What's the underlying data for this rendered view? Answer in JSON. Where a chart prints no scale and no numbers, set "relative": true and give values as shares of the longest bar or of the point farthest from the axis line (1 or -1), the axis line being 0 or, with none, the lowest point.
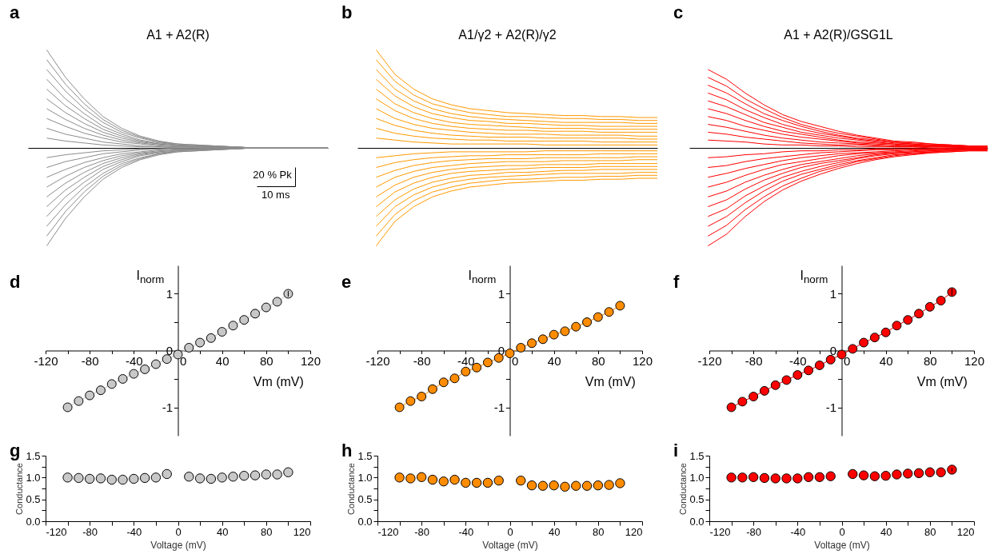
{
  "chart_data": [
    {
      "type": "line",
      "title": "A1 + A2(R)",
      "annotations": [
        "a",
        "20 % Pk",
        "10 ms"
      ],
      "relative": true,
      "color": "#8c8c8c",
      "categories": [
        null,
        null,
        null,
        null,
        null,
        null,
        null,
        null,
        null,
        null,
        null,
        null,
        null,
        null,
        null,
        null,
        null
      ],
      "series": [
        {
          "values": [
            null,
            -1,
            -0.72,
            -0.5,
            -0.32,
            -0.2,
            -0.12,
            -0.07,
            -0.04,
            -0.03,
            -0.02,
            -0.01,
            0,
            0,
            0,
            0,
            0
          ]
        },
        {
          "values": [
            null,
            -0.9,
            -0.65,
            -0.45,
            -0.29,
            -0.18,
            -0.11,
            -0.06,
            -0.04,
            -0.03,
            -0.02,
            -0.01,
            0,
            0,
            0,
            0,
            0
          ]
        },
        {
          "values": [
            null,
            -0.8,
            -0.58,
            -0.4,
            -0.26,
            -0.16,
            -0.1,
            -0.06,
            -0.03,
            -0.02,
            -0.02,
            -0.01,
            0,
            0,
            0,
            0,
            0
          ]
        },
        {
          "values": [
            null,
            -0.7,
            -0.5,
            -0.35,
            -0.22,
            -0.14,
            -0.08,
            -0.05,
            -0.03,
            -0.02,
            -0.01,
            -0.01,
            0,
            0,
            0,
            0,
            0
          ]
        },
        {
          "values": [
            null,
            -0.6,
            -0.43,
            -0.3,
            -0.19,
            -0.12,
            -0.07,
            -0.04,
            -0.02,
            -0.02,
            -0.01,
            -0.01,
            0,
            0,
            0,
            0,
            0
          ]
        },
        {
          "values": [
            null,
            -0.5,
            -0.36,
            -0.25,
            -0.16,
            -0.1,
            -0.06,
            -0.04,
            -0.02,
            -0.02,
            -0.01,
            -0.01,
            0,
            0,
            0,
            0,
            0
          ]
        },
        {
          "values": [
            null,
            -0.4,
            -0.29,
            -0.2,
            -0.13,
            -0.08,
            -0.05,
            -0.03,
            -0.02,
            -0.01,
            -0.01,
            0,
            0,
            0,
            0,
            0,
            0
          ]
        },
        {
          "values": [
            null,
            -0.3,
            -0.22,
            -0.15,
            -0.1,
            -0.06,
            -0.04,
            -0.02,
            -0.01,
            -0.01,
            -0.01,
            0,
            0,
            0,
            0,
            0,
            0
          ]
        },
        {
          "values": [
            null,
            -0.2,
            -0.14,
            -0.1,
            -0.06,
            -0.04,
            -0.02,
            -0.01,
            -0.01,
            -0.01,
            0,
            0,
            0,
            0,
            0,
            0,
            0
          ]
        },
        {
          "values": [
            null,
            -0.1,
            -0.07,
            -0.05,
            -0.03,
            -0.02,
            -0.01,
            -0.01,
            0,
            0,
            0,
            0,
            0,
            0,
            0,
            0,
            0
          ]
        },
        {
          "values": [
            null,
            0.1,
            0.07,
            0.05,
            0.03,
            0.02,
            0.01,
            0.01,
            0,
            0,
            0,
            0,
            0,
            0,
            0,
            0,
            0
          ]
        },
        {
          "values": [
            null,
            0.2,
            0.14,
            0.1,
            0.06,
            0.04,
            0.02,
            0.01,
            0.01,
            0.01,
            0,
            0,
            0,
            0,
            0,
            0,
            0
          ]
        },
        {
          "values": [
            null,
            0.3,
            0.22,
            0.15,
            0.1,
            0.06,
            0.04,
            0.02,
            0.01,
            0.01,
            0.01,
            0,
            0,
            0,
            0,
            0,
            0
          ]
        },
        {
          "values": [
            null,
            0.4,
            0.29,
            0.2,
            0.13,
            0.08,
            0.05,
            0.03,
            0.02,
            0.01,
            0.01,
            0,
            0,
            0,
            0,
            0,
            0
          ]
        },
        {
          "values": [
            null,
            0.5,
            0.36,
            0.25,
            0.16,
            0.1,
            0.06,
            0.04,
            0.02,
            0.02,
            0.01,
            0.01,
            0,
            0,
            0,
            0,
            0
          ]
        },
        {
          "values": [
            null,
            0.6,
            0.43,
            0.3,
            0.19,
            0.12,
            0.07,
            0.04,
            0.02,
            0.02,
            0.01,
            0.01,
            0,
            0,
            0,
            0,
            0
          ]
        },
        {
          "values": [
            null,
            0.7,
            0.5,
            0.35,
            0.22,
            0.14,
            0.08,
            0.05,
            0.03,
            0.02,
            0.01,
            0.01,
            0,
            0,
            0,
            0,
            0
          ]
        },
        {
          "values": [
            null,
            0.8,
            0.58,
            0.4,
            0.26,
            0.16,
            0.1,
            0.06,
            0.03,
            0.02,
            0.02,
            0.01,
            0,
            0,
            0,
            0,
            0
          ]
        },
        {
          "values": [
            null,
            0.9,
            0.65,
            0.45,
            0.29,
            0.18,
            0.11,
            0.06,
            0.04,
            0.03,
            0.02,
            0.01,
            0,
            0,
            0,
            0,
            0
          ]
        },
        {
          "values": [
            null,
            1,
            0.72,
            0.5,
            0.32,
            0.2,
            0.12,
            0.07,
            0.04,
            0.03,
            0.02,
            0.01,
            0,
            0,
            0,
            0,
            0
          ]
        }
      ]
    },
    {
      "type": "line",
      "title": "A1/γ2 + A2(R)/γ2",
      "annotations": [
        "b"
      ],
      "relative": true,
      "color": "#ff9900",
      "categories": [
        null,
        null,
        null,
        null,
        null,
        null,
        null,
        null,
        null,
        null,
        null,
        null,
        null,
        null,
        null,
        null,
        null
      ],
      "series": [
        {
          "values": [
            null,
            -1,
            -0.75,
            -0.6,
            -0.5,
            -0.44,
            -0.4,
            -0.38,
            -0.36,
            -0.35,
            -0.34,
            -0.33,
            -0.33,
            -0.32,
            -0.32,
            -0.31,
            -0.31
          ]
        },
        {
          "values": [
            null,
            -0.9,
            -0.68,
            -0.54,
            -0.45,
            -0.4,
            -0.36,
            -0.34,
            -0.32,
            -0.32,
            -0.31,
            -0.3,
            -0.3,
            -0.29,
            -0.29,
            -0.28,
            -0.28
          ]
        },
        {
          "values": [
            null,
            -0.8,
            -0.6,
            -0.48,
            -0.4,
            -0.35,
            -0.32,
            -0.3,
            -0.29,
            -0.28,
            -0.27,
            -0.26,
            -0.26,
            -0.26,
            -0.26,
            -0.25,
            -0.25
          ]
        },
        {
          "values": [
            null,
            -0.7,
            -0.53,
            -0.42,
            -0.35,
            -0.31,
            -0.28,
            -0.27,
            -0.25,
            -0.25,
            -0.24,
            -0.23,
            -0.23,
            -0.22,
            -0.22,
            -0.22,
            -0.22
          ]
        },
        {
          "values": [
            null,
            -0.6,
            -0.45,
            -0.36,
            -0.3,
            -0.26,
            -0.24,
            -0.23,
            -0.22,
            -0.21,
            -0.2,
            -0.2,
            -0.2,
            -0.19,
            -0.19,
            -0.19,
            -0.19
          ]
        },
        {
          "values": [
            null,
            -0.5,
            -0.38,
            -0.3,
            -0.25,
            -0.22,
            -0.2,
            -0.19,
            -0.18,
            -0.18,
            -0.17,
            -0.17,
            -0.17,
            -0.16,
            -0.16,
            -0.16,
            -0.16
          ]
        },
        {
          "values": [
            null,
            -0.4,
            -0.3,
            -0.24,
            -0.2,
            -0.18,
            -0.16,
            -0.15,
            -0.14,
            -0.14,
            -0.14,
            -0.13,
            -0.13,
            -0.13,
            -0.13,
            -0.12,
            -0.12
          ]
        },
        {
          "values": [
            null,
            -0.3,
            -0.23,
            -0.18,
            -0.15,
            -0.13,
            -0.12,
            -0.11,
            -0.11,
            -0.11,
            -0.1,
            -0.1,
            -0.1,
            -0.1,
            -0.1,
            -0.09,
            -0.09
          ]
        },
        {
          "values": [
            null,
            -0.2,
            -0.15,
            -0.12,
            -0.1,
            -0.09,
            -0.08,
            -0.08,
            -0.07,
            -0.07,
            -0.07,
            -0.07,
            -0.07,
            -0.06,
            -0.06,
            -0.06,
            -0.06
          ]
        },
        {
          "values": [
            null,
            -0.1,
            -0.08,
            -0.06,
            -0.05,
            -0.04,
            -0.04,
            -0.04,
            -0.04,
            -0.04,
            -0.03,
            -0.03,
            -0.03,
            -0.03,
            -0.03,
            -0.03,
            -0.03
          ]
        },
        {
          "values": [
            null,
            0.1,
            0.08,
            0.06,
            0.05,
            0.04,
            0.04,
            0.04,
            0.04,
            0.04,
            0.03,
            0.03,
            0.03,
            0.03,
            0.03,
            0.03,
            0.03
          ]
        },
        {
          "values": [
            null,
            0.2,
            0.15,
            0.12,
            0.1,
            0.09,
            0.08,
            0.08,
            0.07,
            0.07,
            0.07,
            0.07,
            0.07,
            0.06,
            0.06,
            0.06,
            0.06
          ]
        },
        {
          "values": [
            null,
            0.3,
            0.23,
            0.18,
            0.15,
            0.13,
            0.12,
            0.11,
            0.11,
            0.11,
            0.1,
            0.1,
            0.1,
            0.1,
            0.1,
            0.09,
            0.09
          ]
        },
        {
          "values": [
            null,
            0.4,
            0.3,
            0.24,
            0.2,
            0.18,
            0.16,
            0.15,
            0.14,
            0.14,
            0.14,
            0.13,
            0.13,
            0.13,
            0.13,
            0.12,
            0.12
          ]
        },
        {
          "values": [
            null,
            0.5,
            0.38,
            0.3,
            0.25,
            0.22,
            0.2,
            0.19,
            0.18,
            0.18,
            0.17,
            0.17,
            0.17,
            0.16,
            0.16,
            0.16,
            0.16
          ]
        },
        {
          "values": [
            null,
            0.6,
            0.45,
            0.36,
            0.3,
            0.26,
            0.24,
            0.23,
            0.22,
            0.21,
            0.2,
            0.2,
            0.2,
            0.19,
            0.19,
            0.19,
            0.19
          ]
        },
        {
          "values": [
            null,
            0.7,
            0.53,
            0.42,
            0.35,
            0.31,
            0.28,
            0.27,
            0.25,
            0.25,
            0.24,
            0.23,
            0.23,
            0.22,
            0.22,
            0.22,
            0.22
          ]
        },
        {
          "values": [
            null,
            0.8,
            0.6,
            0.48,
            0.4,
            0.35,
            0.32,
            0.3,
            0.29,
            0.28,
            0.27,
            0.26,
            0.26,
            0.26,
            0.26,
            0.25,
            0.25
          ]
        },
        {
          "values": [
            null,
            0.9,
            0.68,
            0.54,
            0.45,
            0.4,
            0.36,
            0.34,
            0.32,
            0.32,
            0.31,
            0.3,
            0.3,
            0.29,
            0.29,
            0.28,
            0.28
          ]
        },
        {
          "values": [
            null,
            1,
            0.75,
            0.6,
            0.5,
            0.44,
            0.4,
            0.38,
            0.36,
            0.35,
            0.34,
            0.33,
            0.33,
            0.32,
            0.32,
            0.31,
            0.31
          ]
        }
      ]
    },
    {
      "type": "line",
      "title": "A1 + A2(R)/GSG1L",
      "annotations": [
        "c"
      ],
      "relative": true,
      "color": "#ff0000",
      "categories": [
        null,
        null,
        null,
        null,
        null,
        null,
        null,
        null,
        null,
        null,
        null,
        null,
        null,
        null,
        null,
        null,
        null
      ],
      "series": [
        {
          "values": [
            null,
            -1,
            -0.88,
            -0.7,
            -0.55,
            -0.43,
            -0.34,
            -0.27,
            -0.21,
            -0.16,
            -0.12,
            -0.09,
            -0.07,
            -0.05,
            -0.04,
            -0.03,
            -0.03
          ]
        },
        {
          "values": [
            null,
            -0.9,
            -0.79,
            -0.63,
            -0.5,
            -0.39,
            -0.31,
            -0.24,
            -0.19,
            -0.14,
            -0.11,
            -0.08,
            -0.06,
            -0.05,
            -0.04,
            -0.03,
            -0.03
          ]
        },
        {
          "values": [
            null,
            -0.8,
            -0.7,
            -0.56,
            -0.44,
            -0.34,
            -0.27,
            -0.22,
            -0.17,
            -0.13,
            -0.1,
            -0.07,
            -0.06,
            -0.04,
            -0.03,
            -0.02,
            -0.02
          ]
        },
        {
          "values": [
            null,
            -0.7,
            -0.62,
            -0.49,
            -0.39,
            -0.3,
            -0.24,
            -0.19,
            -0.15,
            -0.11,
            -0.08,
            -0.06,
            -0.05,
            -0.04,
            -0.03,
            -0.02,
            -0.02
          ]
        },
        {
          "values": [
            null,
            -0.6,
            -0.53,
            -0.42,
            -0.33,
            -0.26,
            -0.2,
            -0.16,
            -0.13,
            -0.1,
            -0.07,
            -0.05,
            -0.04,
            -0.03,
            -0.02,
            -0.02,
            -0.02
          ]
        },
        {
          "values": [
            null,
            -0.5,
            -0.44,
            -0.35,
            -0.28,
            -0.22,
            -0.17,
            -0.14,
            -0.11,
            -0.08,
            -0.06,
            -0.05,
            -0.04,
            -0.03,
            -0.02,
            -0.02,
            -0.02
          ]
        },
        {
          "values": [
            null,
            -0.4,
            -0.35,
            -0.28,
            -0.22,
            -0.17,
            -0.14,
            -0.11,
            -0.08,
            -0.06,
            -0.05,
            -0.04,
            -0.03,
            -0.02,
            -0.02,
            -0.01,
            -0.01
          ]
        },
        {
          "values": [
            null,
            -0.3,
            -0.26,
            -0.21,
            -0.17,
            -0.13,
            -0.1,
            -0.08,
            -0.06,
            -0.05,
            -0.04,
            -0.03,
            -0.02,
            -0.02,
            -0.01,
            -0.01,
            -0.01
          ]
        },
        {
          "values": [
            null,
            -0.2,
            -0.18,
            -0.14,
            -0.11,
            -0.09,
            -0.07,
            -0.05,
            -0.04,
            -0.03,
            -0.02,
            -0.02,
            -0.01,
            -0.01,
            -0.01,
            -0.01,
            -0.01
          ]
        },
        {
          "values": [
            null,
            -0.1,
            -0.09,
            -0.07,
            -0.06,
            -0.04,
            -0.03,
            -0.03,
            -0.02,
            -0.02,
            -0.01,
            -0.01,
            -0.01,
            -0.01,
            0,
            0,
            0
          ]
        },
        {
          "values": [
            null,
            0.08,
            0.07,
            0.06,
            0.04,
            0.03,
            0.03,
            0.02,
            0.02,
            0.01,
            0.01,
            0.01,
            0.01,
            0,
            0,
            0,
            0
          ]
        },
        {
          "values": [
            null,
            0.16,
            0.14,
            0.11,
            0.09,
            0.07,
            0.05,
            0.04,
            0.03,
            0.03,
            0.02,
            0.01,
            0.01,
            0.01,
            0.01,
            0,
            0
          ]
        },
        {
          "values": [
            null,
            0.24,
            0.21,
            0.17,
            0.13,
            0.1,
            0.08,
            0.06,
            0.05,
            0.04,
            0.03,
            0.02,
            0.02,
            0.01,
            0.01,
            0.01,
            0.01
          ]
        },
        {
          "values": [
            null,
            0.32,
            0.28,
            0.22,
            0.18,
            0.14,
            0.11,
            0.09,
            0.07,
            0.05,
            0.04,
            0.03,
            0.02,
            0.02,
            0.01,
            0.01,
            0.01
          ]
        },
        {
          "values": [
            null,
            0.4,
            0.35,
            0.28,
            0.22,
            0.17,
            0.14,
            0.11,
            0.08,
            0.06,
            0.05,
            0.04,
            0.03,
            0.02,
            0.02,
            0.01,
            0.01
          ]
        },
        {
          "values": [
            null,
            0.48,
            0.42,
            0.34,
            0.26,
            0.21,
            0.16,
            0.13,
            0.1,
            0.08,
            0.06,
            0.04,
            0.03,
            0.02,
            0.02,
            0.01,
            0.01
          ]
        },
        {
          "values": [
            null,
            0.56,
            0.49,
            0.39,
            0.31,
            0.24,
            0.19,
            0.15,
            0.12,
            0.09,
            0.07,
            0.05,
            0.04,
            0.03,
            0.02,
            0.02,
            0.02
          ]
        },
        {
          "values": [
            null,
            0.64,
            0.56,
            0.45,
            0.35,
            0.28,
            0.22,
            0.17,
            0.13,
            0.1,
            0.08,
            0.06,
            0.04,
            0.03,
            0.03,
            0.02,
            0.02
          ]
        },
        {
          "values": [
            null,
            0.72,
            0.63,
            0.5,
            0.4,
            0.31,
            0.24,
            0.19,
            0.15,
            0.12,
            0.09,
            0.06,
            0.05,
            0.04,
            0.03,
            0.02,
            0.02
          ]
        },
        {
          "values": [
            null,
            0.8,
            0.7,
            0.56,
            0.44,
            0.34,
            0.27,
            0.22,
            0.17,
            0.13,
            0.1,
            0.07,
            0.06,
            0.04,
            0.03,
            0.02,
            0.02
          ]
        }
      ]
    },
    {
      "type": "line",
      "marker": "circle",
      "annotations": [
        "d"
      ],
      "ylabel": "I$_{norm}$",
      "xlabel": "Vm (mV)",
      "x": [
        -100,
        -90,
        -80,
        -70,
        -60,
        -50,
        -40,
        -30,
        -20,
        -10,
        0,
        10,
        20,
        30,
        40,
        50,
        60,
        70,
        80,
        90,
        100
      ],
      "xlim": [
        -120,
        120
      ],
      "xticks": [
        -120,
        {
          "value": -100,
          "label": null
        },
        -80,
        {
          "value": -60,
          "label": null
        },
        -40,
        {
          "value": -20,
          "label": null
        },
        0,
        {
          "value": 20,
          "label": null
        },
        40,
        {
          "value": 60,
          "label": null
        },
        80,
        {
          "value": 100,
          "label": null
        },
        120
      ],
      "ylim": [
        -1.5,
        1.5
      ],
      "yticks": [
        -1,
        {
          "value": -0.5,
          "label": null
        },
        0,
        {
          "value": 0.5,
          "label": null
        },
        1
      ],
      "series": [
        {
          "color": "#c8c8c8",
          "values": [
            -1,
            -0.89,
            -0.79,
            -0.7,
            -0.59,
            -0.5,
            -0.41,
            -0.33,
            -0.24,
            -0.15,
            -0.07,
            0.05,
            0.14,
            0.22,
            0.33,
            0.44,
            0.54,
            0.65,
            0.76,
            0.86,
            1
          ],
          "errors": [
            null,
            null,
            null,
            null,
            null,
            null,
            null,
            null,
            null,
            null,
            null,
            null,
            null,
            null,
            null,
            null,
            null,
            null,
            null,
            null,
            0.05
          ]
        }
      ]
    },
    {
      "type": "line",
      "marker": "circle",
      "annotations": [
        "e"
      ],
      "ylabel": "I$_{norm}$",
      "xlabel": "Vm (mV)",
      "x": [
        -100,
        -90,
        -80,
        -70,
        -60,
        -50,
        -40,
        -30,
        -20,
        -10,
        0,
        10,
        20,
        30,
        40,
        50,
        60,
        70,
        80,
        90,
        100
      ],
      "xlim": [
        -120,
        120
      ],
      "xticks": [
        -120,
        {
          "value": -100,
          "label": null
        },
        -80,
        {
          "value": -60,
          "label": null
        },
        -40,
        {
          "value": -20,
          "label": null
        },
        0,
        {
          "value": 20,
          "label": null
        },
        40,
        {
          "value": 60,
          "label": null
        },
        80,
        {
          "value": 100,
          "label": null
        },
        120
      ],
      "ylim": [
        -1.5,
        1.5
      ],
      "yticks": [
        -1,
        {
          "value": -0.5,
          "label": null
        },
        0,
        {
          "value": 0.5,
          "label": null
        },
        1
      ],
      "series": [
        {
          "color": "#ff8c00",
          "values": [
            -1,
            -0.89,
            -0.81,
            -0.68,
            -0.56,
            -0.49,
            -0.37,
            -0.3,
            -0.21,
            -0.13,
            -0.05,
            0.05,
            0.13,
            0.2,
            0.28,
            0.34,
            0.42,
            0.5,
            0.59,
            0.68,
            0.79
          ]
        }
      ]
    },
    {
      "type": "line",
      "marker": "circle",
      "annotations": [
        "f"
      ],
      "ylabel": "I$_{norm}$",
      "xlabel": "Vm (mV)",
      "x": [
        -100,
        -90,
        -80,
        -70,
        -60,
        -50,
        -40,
        -30,
        -20,
        -10,
        0,
        10,
        20,
        30,
        40,
        50,
        60,
        70,
        80,
        90,
        100
      ],
      "xlim": [
        -120,
        120
      ],
      "xticks": [
        -120,
        {
          "value": -100,
          "label": null
        },
        -80,
        {
          "value": -60,
          "label": null
        },
        -40,
        {
          "value": -20,
          "label": null
        },
        0,
        {
          "value": 20,
          "label": null
        },
        40,
        {
          "value": 60,
          "label": null
        },
        80,
        {
          "value": 100,
          "label": null
        },
        120
      ],
      "ylim": [
        -1.5,
        1.5
      ],
      "yticks": [
        -1,
        {
          "value": -0.5,
          "label": null
        },
        0,
        {
          "value": 0.5,
          "label": null
        },
        1
      ],
      "series": [
        {
          "color": "#ff0000",
          "values": [
            -1,
            -0.9,
            -0.81,
            -0.71,
            -0.61,
            -0.52,
            -0.43,
            -0.35,
            -0.26,
            -0.16,
            -0.07,
            0.03,
            0.14,
            0.23,
            0.32,
            0.44,
            0.54,
            0.65,
            0.77,
            0.88,
            1.03
          ],
          "errors": [
            null,
            null,
            null,
            null,
            null,
            null,
            null,
            null,
            null,
            null,
            null,
            null,
            null,
            null,
            null,
            null,
            null,
            null,
            null,
            null,
            0.06
          ]
        }
      ]
    },
    {
      "type": "scatter",
      "marker": "circle",
      "annotations": [
        "g"
      ],
      "ylabel": "Conductance",
      "xlabel": "Voltage (mV)",
      "x": [
        -100,
        -90,
        -80,
        -70,
        -60,
        -50,
        -40,
        -30,
        -20,
        -10,
        0,
        10,
        20,
        30,
        40,
        50,
        60,
        70,
        80,
        90,
        100
      ],
      "xlim": [
        -120,
        120
      ],
      "xticks": [
        -120,
        {
          "value": -100,
          "label": null
        },
        -80,
        {
          "value": -60,
          "label": null
        },
        -40,
        {
          "value": -20,
          "label": null
        },
        0,
        {
          "value": 20,
          "label": null
        },
        40,
        {
          "value": 60,
          "label": null
        },
        80,
        {
          "value": 100,
          "label": null
        },
        120
      ],
      "ylim": [
        0,
        1.5
      ],
      "yticks": [
        {
          "value": 0,
          "label": "0.0"
        },
        {
          "value": 0.25,
          "label": null
        },
        {
          "value": 0.5,
          "label": "0.5"
        },
        {
          "value": 0.75,
          "label": null
        },
        {
          "value": 1,
          "label": "1.0"
        },
        {
          "value": 1.25,
          "label": null
        },
        {
          "value": 1.5,
          "label": "1.5"
        }
      ],
      "series": [
        {
          "color": "#c8c8c8",
          "values": [
            1,
            0.99,
            0.97,
            0.98,
            0.95,
            0.95,
            0.97,
            0.99,
            1,
            1.08,
            null,
            1.02,
            0.98,
            0.97,
            1,
            1.02,
            1.04,
            1.05,
            1.07,
            1.07,
            1.12
          ]
        }
      ]
    },
    {
      "type": "scatter",
      "marker": "circle",
      "annotations": [
        "h"
      ],
      "ylabel": "Conductance",
      "xlabel": "Voltage (mV)",
      "x": [
        -100,
        -90,
        -80,
        -70,
        -60,
        -50,
        -40,
        -30,
        -20,
        -10,
        0,
        10,
        20,
        30,
        40,
        50,
        60,
        70,
        80,
        90,
        100
      ],
      "xlim": [
        -120,
        120
      ],
      "xticks": [
        -120,
        {
          "value": -100,
          "label": null
        },
        -80,
        {
          "value": -60,
          "label": null
        },
        -40,
        {
          "value": -20,
          "label": null
        },
        0,
        {
          "value": 20,
          "label": null
        },
        40,
        {
          "value": 60,
          "label": null
        },
        80,
        {
          "value": 100,
          "label": null
        },
        120
      ],
      "ylim": [
        0,
        1.5
      ],
      "yticks": [
        {
          "value": 0,
          "label": "0.0"
        },
        {
          "value": 0.25,
          "label": null
        },
        {
          "value": 0.5,
          "label": "0.5"
        },
        {
          "value": 0.75,
          "label": null
        },
        {
          "value": 1,
          "label": "1.0"
        },
        {
          "value": 1.25,
          "label": null
        },
        {
          "value": 1.5,
          "label": "1.5"
        }
      ],
      "series": [
        {
          "color": "#ff8c00",
          "values": [
            1,
            0.98,
            1.01,
            0.95,
            0.91,
            0.95,
            0.88,
            0.88,
            0.88,
            0.93,
            null,
            0.93,
            0.82,
            0.81,
            0.82,
            0.79,
            0.81,
            0.81,
            0.82,
            0.83,
            0.87
          ]
        }
      ]
    },
    {
      "type": "scatter",
      "marker": "circle",
      "annotations": [
        "i"
      ],
      "ylabel": "Conductance",
      "xlabel": "Voltage (mV)",
      "x": [
        -100,
        -90,
        -80,
        -70,
        -60,
        -50,
        -40,
        -30,
        -20,
        -10,
        0,
        10,
        20,
        30,
        40,
        50,
        60,
        70,
        80,
        90,
        100
      ],
      "xlim": [
        -120,
        120
      ],
      "xticks": [
        -120,
        {
          "value": -100,
          "label": null
        },
        -80,
        {
          "value": -60,
          "label": null
        },
        -40,
        {
          "value": -20,
          "label": null
        },
        0,
        {
          "value": 20,
          "label": null
        },
        40,
        {
          "value": 60,
          "label": null
        },
        80,
        {
          "value": 100,
          "label": null
        },
        120
      ],
      "ylim": [
        0,
        1.5
      ],
      "yticks": [
        {
          "value": 0,
          "label": "0.0"
        },
        {
          "value": 0.25,
          "label": null
        },
        {
          "value": 0.5,
          "label": "0.5"
        },
        {
          "value": 0.75,
          "label": null
        },
        {
          "value": 1,
          "label": "1.0"
        },
        {
          "value": 1.25,
          "label": null
        },
        {
          "value": 1.5,
          "label": "1.5"
        }
      ],
      "series": [
        {
          "color": "#ff0000",
          "values": [
            1,
            1,
            1.01,
            0.99,
            0.98,
            0.98,
            0.98,
            1.01,
            1.01,
            1.03,
            null,
            1.08,
            1.05,
            1.03,
            1.04,
            1.07,
            1.09,
            1.1,
            1.12,
            1.12,
            1.18
          ],
          "errors": [
            null,
            null,
            null,
            null,
            null,
            null,
            null,
            null,
            null,
            null,
            null,
            null,
            null,
            null,
            null,
            null,
            null,
            null,
            null,
            null,
            0.04
          ]
        }
      ]
    }
  ]
}
